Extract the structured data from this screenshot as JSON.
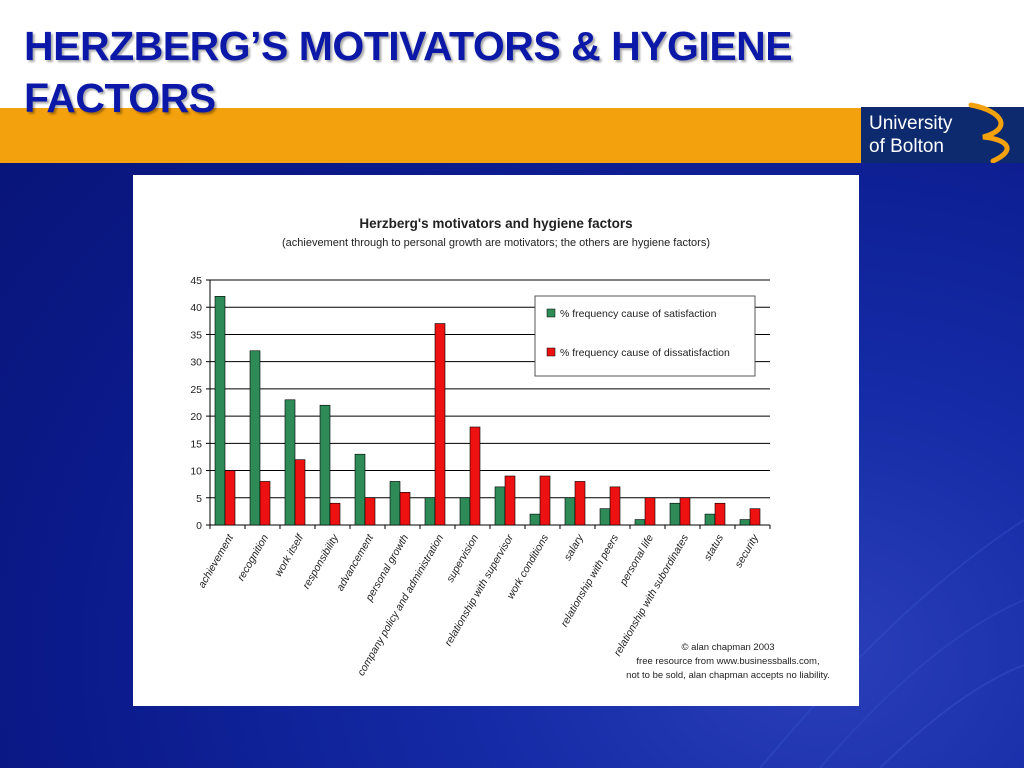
{
  "slide": {
    "title_line1": "HERZBERG’S MOTIVATORS & HYGIENE",
    "title_line2": "FACTORS"
  },
  "logo": {
    "line1": "University",
    "line2": "of Bolton"
  },
  "colors": {
    "satisfaction": "#2e8b57",
    "dissatisfaction": "#ee1111",
    "title_text": "#0c18a8",
    "orange_band": "#f4a10e"
  },
  "chart_data": {
    "type": "bar",
    "title": "Herzberg's motivators and hygiene factors",
    "subtitle": "(achievement through to personal growth are motivators; the others are hygiene factors)",
    "categories": [
      "achievement",
      "recognition",
      "work itself",
      "responsibility",
      "advancement",
      "personal growth",
      "company policy and administration",
      "supervision",
      "relationship with supervisor",
      "work conditions",
      "salary",
      "relationship with peers",
      "personal life",
      "relationship with subordinates",
      "status",
      "security"
    ],
    "series": [
      {
        "name": "% frequency cause of satisfaction",
        "values": [
          42,
          32,
          23,
          22,
          13,
          8,
          5,
          5,
          7,
          2,
          5,
          3,
          1,
          4,
          2,
          1
        ]
      },
      {
        "name": "% frequency cause of dissatisfaction",
        "values": [
          10,
          8,
          12,
          4,
          5,
          6,
          37,
          18,
          9,
          9,
          8,
          7,
          5,
          5,
          4,
          3
        ]
      }
    ],
    "ylim": [
      0,
      45
    ],
    "yticks": [
      0,
      5,
      10,
      15,
      20,
      25,
      30,
      35,
      40,
      45
    ],
    "grid": true,
    "legend_placement": "top-right",
    "credit": [
      "© alan chapman 2003",
      "free resource from www.businessballs.com,",
      "not to be sold, alan chapman accepts no liability."
    ]
  }
}
